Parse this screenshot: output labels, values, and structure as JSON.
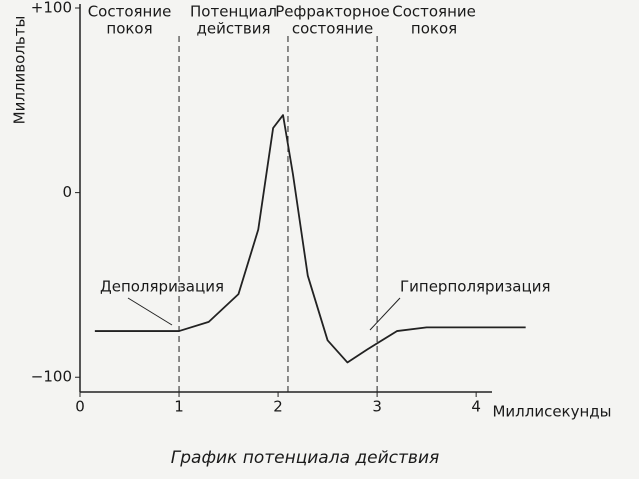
{
  "chart_data": {
    "type": "line",
    "title": "График потенциала действия",
    "xlabel": "Миллисекунды",
    "ylabel": "Милливольты",
    "x": [
      0.15,
      1.0,
      1.3,
      1.6,
      1.8,
      1.95,
      2.05,
      2.15,
      2.3,
      2.5,
      2.7,
      2.9,
      3.2,
      3.5,
      4.5
    ],
    "values": [
      -75,
      -75,
      -70,
      -55,
      -20,
      35,
      42,
      10,
      -45,
      -80,
      -92,
      -85,
      -75,
      -73,
      -73
    ],
    "color": "#222222",
    "xlim": [
      0,
      4.15
    ],
    "ylim": [
      -108,
      100
    ],
    "xticks": [
      0,
      1,
      2,
      3,
      4
    ],
    "yticks": [
      {
        "value": 100,
        "label": "+100"
      },
      0,
      {
        "value": -100,
        "label": "−100"
      }
    ],
    "boundaries": [
      1,
      2.1,
      3
    ],
    "regions": [
      [
        "Состояние",
        "покоя"
      ],
      [
        "Потенциал",
        "действия"
      ],
      [
        "Рефракторное",
        "состояние"
      ],
      [
        "Состояние",
        "покоя"
      ]
    ],
    "annotations": [
      "Деполяризация",
      "Гиперполяризация"
    ]
  }
}
